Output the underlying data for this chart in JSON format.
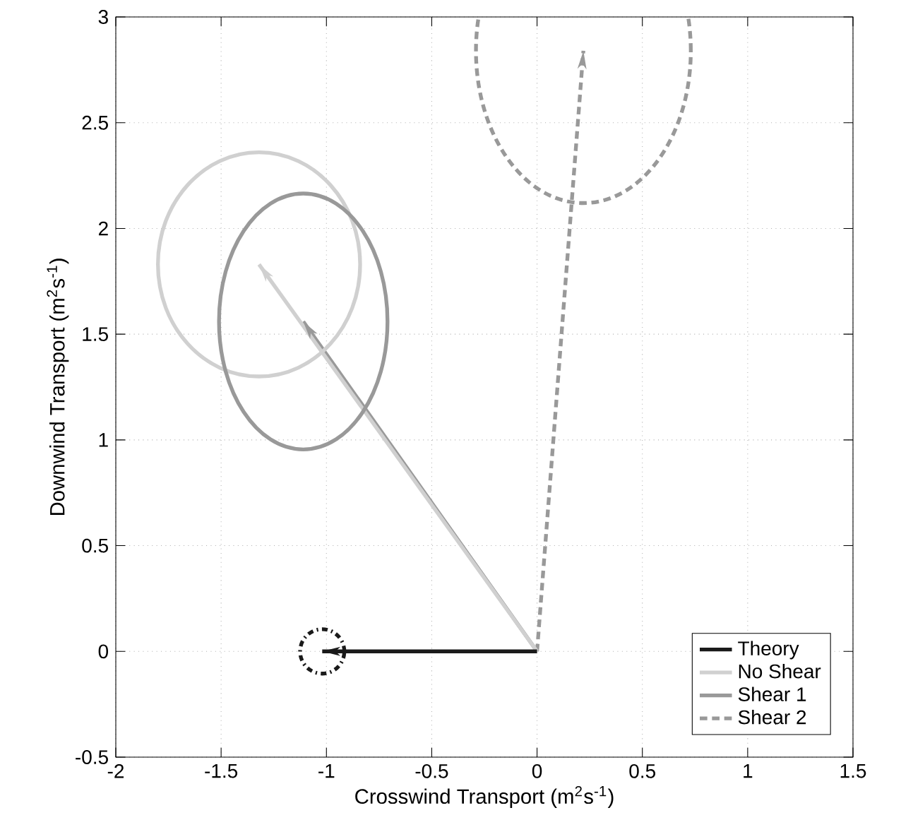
{
  "chart_data": {
    "type": "line",
    "xlabel": "Crosswind Transport (m$^{2}$s$^{-1}$)",
    "ylabel": "Downwind Transport (m$^{2}$s$^{-1}$)",
    "xlim": [
      -2,
      1.5
    ],
    "ylim": [
      -0.5,
      3
    ],
    "xticks": [
      -2,
      -1.5,
      -1,
      -0.5,
      0,
      0.5,
      1,
      1.5
    ],
    "yticks": [
      -0.5,
      0,
      0.5,
      1,
      1.5,
      2,
      2.5,
      3
    ],
    "grid": true,
    "legend": "bottom right",
    "series": [
      {
        "name": "Theory",
        "color": "#1a1a1a",
        "line_style": "solid",
        "x": [
          0,
          -1.02
        ],
        "values": [
          0,
          0
        ]
      },
      {
        "name": "No Shear",
        "color": "#d0d0d0",
        "line_style": "solid",
        "x": [
          0,
          -1.32
        ],
        "values": [
          0,
          1.83
        ]
      },
      {
        "name": "Shear 1",
        "color": "#999999",
        "line_style": "solid",
        "x": [
          0,
          -1.11
        ],
        "values": [
          0,
          1.56
        ]
      },
      {
        "name": "Shear 2",
        "color": "#999999",
        "line_style": "dashed",
        "x": [
          0,
          0.22
        ],
        "values": [
          0,
          2.84
        ]
      }
    ]
  }
}
